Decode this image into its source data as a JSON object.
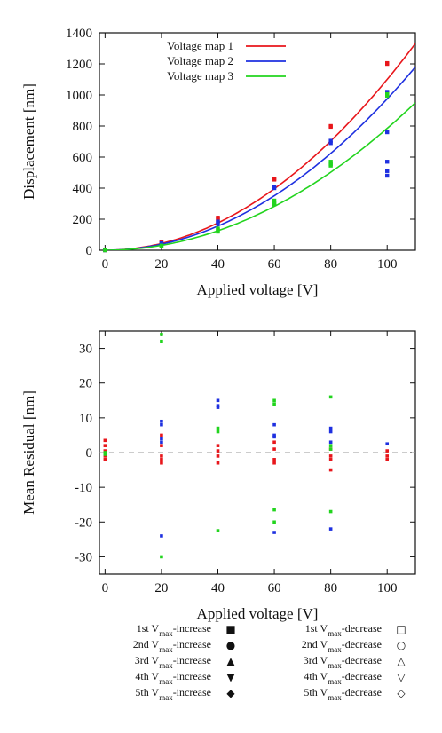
{
  "colors": {
    "map1": "#e8161b",
    "map2": "#1e30e0",
    "map3": "#22d41e",
    "zero": "#999999"
  },
  "chart_data": [
    {
      "type": "scatter",
      "xlabel": "Applied voltage [V]",
      "ylabel": "Displacement [nm]",
      "xlim": [
        -2,
        110
      ],
      "ylim": [
        0,
        1400
      ],
      "xticks": [
        0,
        20,
        40,
        60,
        80,
        100
      ],
      "yticks": [
        0,
        200,
        400,
        600,
        800,
        1000,
        1200,
        1400
      ],
      "legend_position": "top-left",
      "series": [
        {
          "name": "Voltage map 1",
          "color_key": "map1",
          "fit_coeff": 0.11,
          "points": [
            [
              0,
              0
            ],
            [
              20,
              55
            ],
            [
              20,
              50
            ],
            [
              40,
              210
            ],
            [
              40,
              200
            ],
            [
              60,
              460
            ],
            [
              60,
              455
            ],
            [
              80,
              800
            ],
            [
              80,
              795
            ],
            [
              100,
              1205
            ],
            [
              100,
              1200
            ]
          ]
        },
        {
          "name": "Voltage map 2",
          "color_key": "map2",
          "fit_coeff": 0.0975,
          "points": [
            [
              0,
              0
            ],
            [
              20,
              45
            ],
            [
              20,
              40
            ],
            [
              40,
              185
            ],
            [
              40,
              175
            ],
            [
              60,
              410
            ],
            [
              60,
              400
            ],
            [
              80,
              705
            ],
            [
              80,
              690
            ],
            [
              100,
              1020
            ],
            [
              100,
              1010
            ],
            [
              100,
              760
            ],
            [
              100,
              570
            ],
            [
              100,
              510
            ],
            [
              100,
              480
            ]
          ]
        },
        {
          "name": "Voltage map 3",
          "color_key": "map3",
          "fit_coeff": 0.0785,
          "points": [
            [
              0,
              0
            ],
            [
              20,
              30
            ],
            [
              20,
              25
            ],
            [
              40,
              140
            ],
            [
              40,
              130
            ],
            [
              40,
              120
            ],
            [
              60,
              320
            ],
            [
              60,
              305
            ],
            [
              60,
              295
            ],
            [
              80,
              570
            ],
            [
              80,
              555
            ],
            [
              80,
              545
            ],
            [
              100,
              1005
            ],
            [
              100,
              995
            ]
          ]
        }
      ]
    },
    {
      "type": "scatter",
      "xlabel": "Applied voltage [V]",
      "ylabel": "Mean Residual [nm]",
      "xlim": [
        -2,
        110
      ],
      "ylim": [
        -35,
        35
      ],
      "xticks": [
        0,
        20,
        40,
        60,
        80,
        100
      ],
      "yticks": [
        -30,
        -20,
        -10,
        0,
        10,
        20,
        30
      ],
      "reference_line": 0,
      "series": [
        {
          "color_key": "map1",
          "points": [
            [
              0,
              3.5
            ],
            [
              0,
              2
            ],
            [
              0,
              0.5
            ],
            [
              0,
              -1
            ],
            [
              0,
              -2
            ],
            [
              20,
              5
            ],
            [
              20,
              2
            ],
            [
              20,
              -1
            ],
            [
              20,
              -2
            ],
            [
              20,
              -3
            ],
            [
              40,
              2
            ],
            [
              40,
              0.5
            ],
            [
              40,
              -1
            ],
            [
              40,
              -3
            ],
            [
              60,
              3
            ],
            [
              60,
              1
            ],
            [
              60,
              -2
            ],
            [
              60,
              -3
            ],
            [
              80,
              1
            ],
            [
              80,
              -1
            ],
            [
              80,
              -2
            ],
            [
              80,
              -5
            ],
            [
              100,
              0.5
            ],
            [
              100,
              -1
            ],
            [
              100,
              -2
            ]
          ]
        },
        {
          "color_key": "map2",
          "points": [
            [
              20,
              9
            ],
            [
              20,
              8
            ],
            [
              20,
              4
            ],
            [
              20,
              3
            ],
            [
              20,
              -24
            ],
            [
              40,
              15
            ],
            [
              40,
              13.5
            ],
            [
              40,
              13
            ],
            [
              60,
              8
            ],
            [
              60,
              5
            ],
            [
              60,
              4.5
            ],
            [
              60,
              -23
            ],
            [
              80,
              7
            ],
            [
              80,
              6
            ],
            [
              80,
              3
            ],
            [
              80,
              -22
            ],
            [
              100,
              2.5
            ]
          ]
        },
        {
          "color_key": "map3",
          "points": [
            [
              0,
              0
            ],
            [
              0,
              -0.5
            ],
            [
              20,
              34
            ],
            [
              20,
              32
            ],
            [
              20,
              -30
            ],
            [
              40,
              7
            ],
            [
              40,
              6
            ],
            [
              40,
              -22.5
            ],
            [
              60,
              15
            ],
            [
              60,
              14
            ],
            [
              60,
              -16.5
            ],
            [
              60,
              -20
            ],
            [
              80,
              16
            ],
            [
              80,
              2
            ],
            [
              80,
              1
            ],
            [
              80,
              -17
            ]
          ]
        }
      ]
    }
  ],
  "marker_legend": {
    "left": [
      {
        "ord": "1st",
        "sym": "■"
      },
      {
        "ord": "2nd",
        "sym": "●"
      },
      {
        "ord": "3rd",
        "sym": "▲"
      },
      {
        "ord": "4th",
        "sym": "▼"
      },
      {
        "ord": "5th",
        "sym": "◆"
      }
    ],
    "right": [
      {
        "ord": "1st",
        "sym": "□"
      },
      {
        "ord": "2nd",
        "sym": "○"
      },
      {
        "ord": "3rd",
        "sym": "△"
      },
      {
        "ord": "4th",
        "sym": "▽"
      },
      {
        "ord": "5th",
        "sym": "◇"
      }
    ],
    "v": "V",
    "sub": "max",
    "increase": "-increase",
    "decrease": "-decrease"
  }
}
